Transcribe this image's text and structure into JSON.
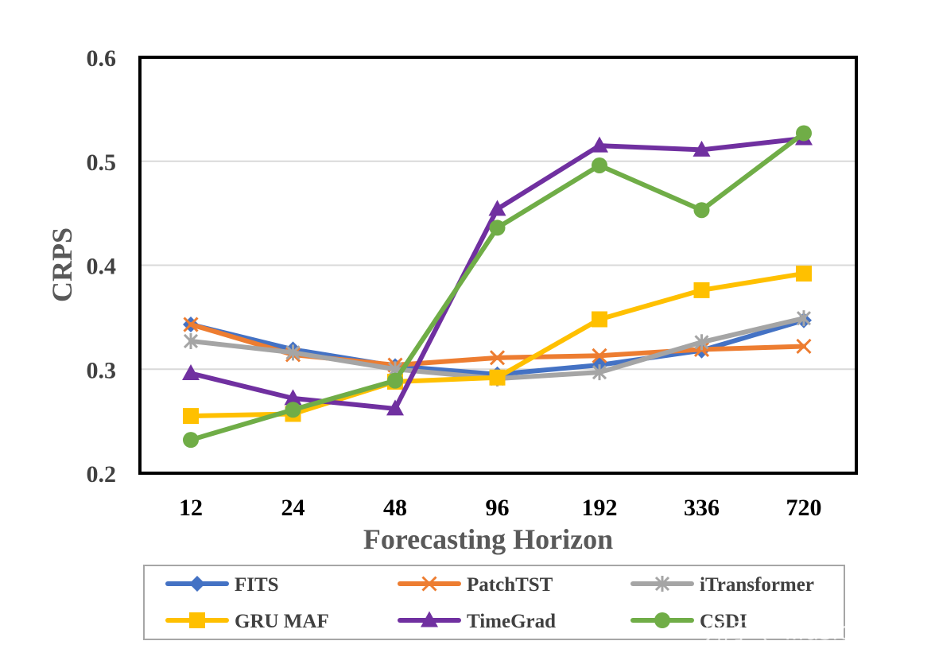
{
  "chart_data": {
    "type": "line",
    "title": "",
    "xlabel": "Forecasting Horizon",
    "ylabel": "CRPS",
    "categories": [
      "12",
      "24",
      "48",
      "96",
      "192",
      "336",
      "720"
    ],
    "ylim": [
      0.2,
      0.6
    ],
    "yticks": [
      "0.2",
      "0.3",
      "0.4",
      "0.5",
      "0.6"
    ],
    "ytick_values": [
      0.2,
      0.3,
      0.4,
      0.5,
      0.6
    ],
    "grid": true,
    "legend_position": "bottom",
    "series": [
      {
        "name": "FITS",
        "color": "#4472C4",
        "marker": "diamond",
        "values": [
          0.343,
          0.319,
          0.303,
          0.295,
          0.304,
          0.318,
          0.347
        ]
      },
      {
        "name": "PatchTST",
        "color": "#ED7D31",
        "marker": "x",
        "values": [
          0.343,
          0.314,
          0.304,
          0.311,
          0.313,
          0.319,
          0.322
        ]
      },
      {
        "name": "iTransformer",
        "color": "#A5A5A5",
        "marker": "asterisk",
        "values": [
          0.327,
          0.316,
          0.3,
          0.291,
          0.297,
          0.326,
          0.349
        ]
      },
      {
        "name": "GRU MAF",
        "color": "#FFC000",
        "marker": "square",
        "values": [
          0.255,
          0.257,
          0.288,
          0.292,
          0.348,
          0.376,
          0.392
        ]
      },
      {
        "name": "TimeGrad",
        "color": "#7030A0",
        "marker": "triangle",
        "values": [
          0.296,
          0.272,
          0.262,
          0.454,
          0.515,
          0.511,
          0.522
        ]
      },
      {
        "name": "CSDI",
        "color": "#70AD47",
        "marker": "circle",
        "values": [
          0.232,
          0.261,
          0.289,
          0.436,
          0.496,
          0.453,
          0.527
        ]
      }
    ]
  },
  "watermark": "知乎 @illusionista"
}
